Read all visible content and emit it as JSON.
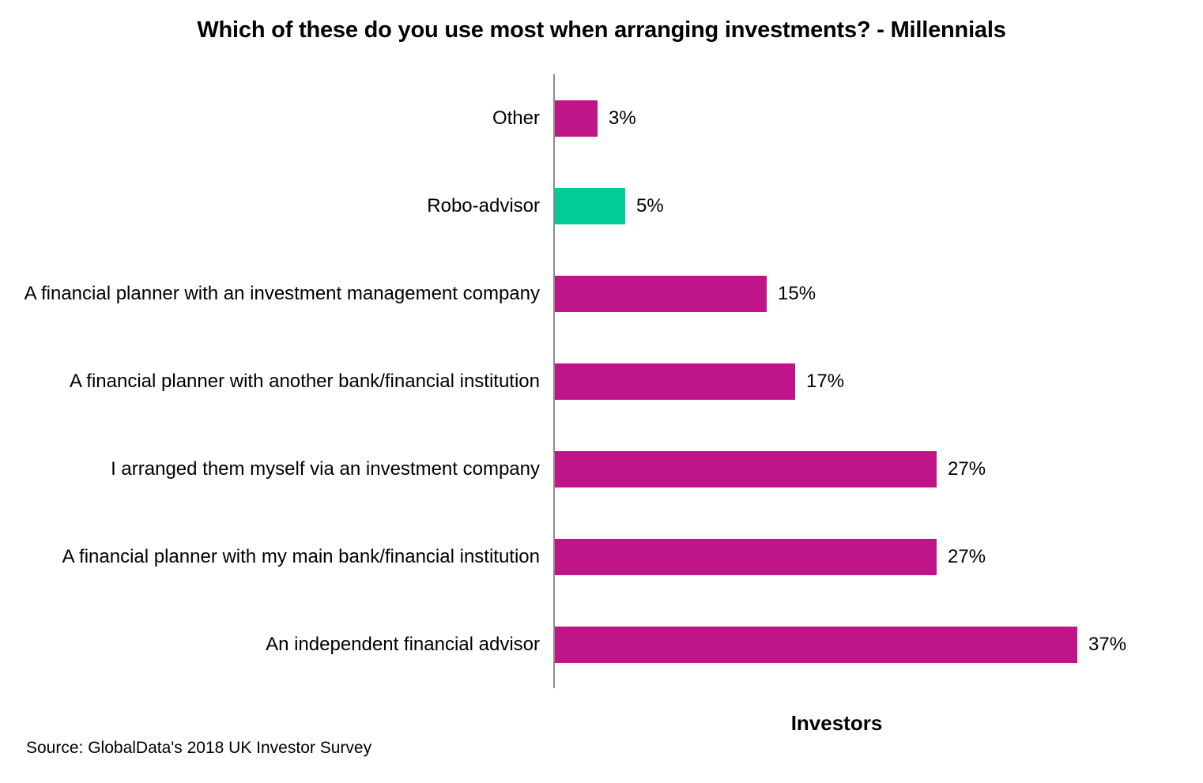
{
  "title": "Which of these do you use most when arranging investments? - Millennials",
  "x_axis_label": "Investors",
  "source": "Source: GlobalData's 2018 UK Investor Survey",
  "colors": {
    "bar_default": "#C01589",
    "bar_highlight": "#00CC96",
    "axis": "#8a8a8a",
    "text": "#000000",
    "background": "#ffffff"
  },
  "chart_data": {
    "type": "bar",
    "orientation": "horizontal",
    "title": "Which of these do you use most when arranging investments? - Millennials",
    "xlabel": "Investors",
    "ylabel": "",
    "xlim": [
      0,
      40
    ],
    "grid": false,
    "legend": "none",
    "categories": [
      "Other",
      "Robo-advisor",
      "A financial planner with an investment management company",
      "A financial planner with another bank/financial institution",
      "I arranged them myself via an investment company",
      "A financial planner with my main bank/financial institution",
      "An independent financial advisor"
    ],
    "values": [
      3,
      5,
      15,
      17,
      27,
      27,
      37
    ],
    "value_labels": [
      "3%",
      "5%",
      "15%",
      "17%",
      "27%",
      "27%",
      "37%"
    ],
    "bar_colors": [
      "#C01589",
      "#00CC96",
      "#C01589",
      "#C01589",
      "#C01589",
      "#C01589",
      "#C01589"
    ]
  }
}
